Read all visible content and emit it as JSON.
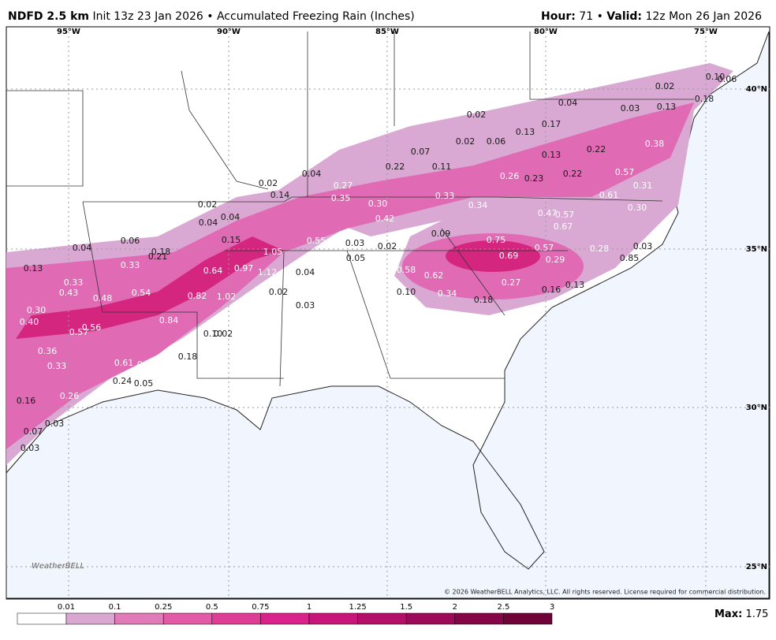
{
  "header": {
    "model": "NDFD 2.5 km",
    "description": "Init 13z 23 Jan 2026 • Accumulated Freezing Rain (Inches)",
    "hour_label": "Hour:",
    "hour": 71,
    "separator": "•",
    "valid_label": "Valid:",
    "valid": "12z Mon 26 Jan 2026"
  },
  "map": {
    "longitudes": [
      "95°W",
      "90°W",
      "85°W",
      "80°W",
      "75°W"
    ],
    "latitudes": [
      "40°N",
      "35°N",
      "30°N",
      "25°N"
    ],
    "amounts": [
      "0.10",
      "0.06",
      "0.02",
      "0.18",
      "0.04",
      "0.03",
      "0.13",
      "0.02",
      "0.17",
      "0.13",
      "0.38",
      "0.02",
      "0.06",
      "0.07",
      "0.22",
      "0.13",
      "0.22",
      "0.11",
      "0.04",
      "0.57",
      "0.26",
      "0.23",
      "0.22",
      "0.02",
      "0.27",
      "0.31",
      "0.14",
      "0.35",
      "0.33",
      "0.61",
      "0.02",
      "0.30",
      "0.34",
      "0.30",
      "0.47",
      "0.57",
      "0.04",
      "0.42",
      "0.67",
      "0.04",
      "0.09",
      "0.06",
      "0.15",
      "0.55",
      "0.03",
      "0.75",
      "0.04",
      "0.18",
      "0.02",
      "0.57",
      "0.28",
      "0.03",
      "0.21",
      "1.05",
      "0.05",
      "0.69",
      "0.29",
      "0.85",
      "0.33",
      "0.13",
      "0.64",
      "0.97",
      "1.12",
      "0.04",
      "0.58",
      "0.62",
      "0.33",
      "0.27",
      "0.13",
      "0.43",
      "0.54",
      "0.02",
      "0.10",
      "0.34",
      "0.16",
      "0.48",
      "0.82",
      "1.02",
      "0.18",
      "0.03",
      "0.30",
      "0.40",
      "0.84",
      "0.56",
      "0.57",
      "0.10",
      "0.02",
      "0.36",
      "0.18",
      "0.61",
      "0.61",
      "0.33",
      "0.24",
      "0.05",
      "0.26",
      "0.16",
      "0.03",
      "0.07",
      "0.03"
    ],
    "logo": "WeatherBELL",
    "copyright": "© 2026 WeatherBELL Analytics, LLC. All rights reserved. License required for commercial distribution."
  },
  "legend": {
    "ticks": [
      0.01,
      0.1,
      0.25,
      0.5,
      0.75,
      1,
      1.25,
      1.5,
      2,
      2.5,
      3
    ],
    "colors": [
      "#ffffff",
      "#d8a8d0",
      "#e07ab8",
      "#e35aa6",
      "#de3d96",
      "#d9238a",
      "#c8157a",
      "#b30f68",
      "#9c0a58",
      "#850647",
      "#6e0338"
    ],
    "max_label": "Max:",
    "max": 1.75
  }
}
